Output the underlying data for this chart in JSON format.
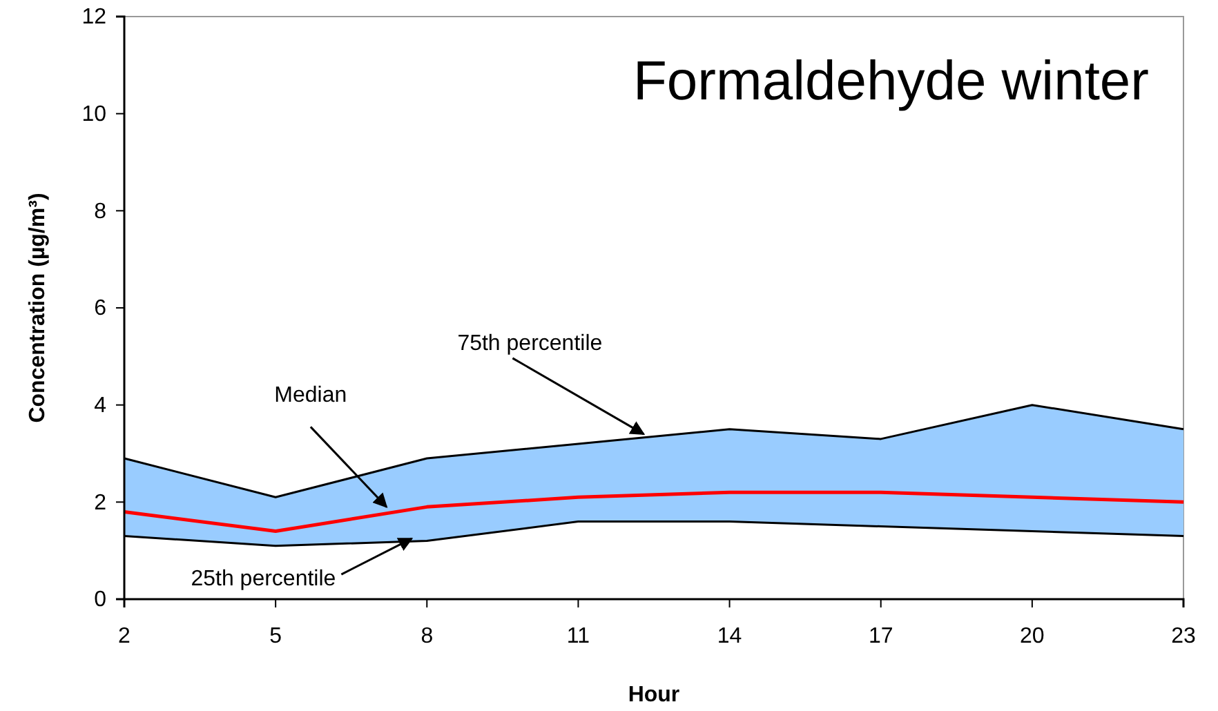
{
  "chart_data": {
    "type": "line",
    "title": "Formaldehyde winter",
    "xlabel": "Hour",
    "ylabel": "Concentration (µg/m³)",
    "x": [
      2,
      5,
      8,
      11,
      14,
      17,
      20,
      23
    ],
    "series": [
      {
        "color": "#ff0000",
        "values": [
          1.8,
          1.4,
          1.9,
          2.1,
          2.2,
          2.2,
          2.1,
          2.0
        ],
        "lower": [
          1.3,
          1.1,
          1.2,
          1.6,
          1.6,
          1.5,
          1.4,
          1.3
        ],
        "upper": [
          2.9,
          2.1,
          2.9,
          3.2,
          3.5,
          3.3,
          4.0,
          3.5
        ]
      },
      {
        "color": "#000000",
        "values": [
          2.9,
          2.1,
          2.9,
          3.2,
          3.5,
          3.3,
          4.0,
          3.5
        ]
      },
      {
        "color": "#000000",
        "values": [
          1.3,
          1.1,
          1.2,
          1.6,
          1.6,
          1.5,
          1.4,
          1.3
        ]
      }
    ],
    "xlim": [
      2,
      23
    ],
    "xticks": [
      2,
      5,
      8,
      11,
      14,
      17,
      20,
      23
    ],
    "ylim": [
      0,
      12
    ],
    "yticks": [
      0,
      2,
      4,
      6,
      8,
      10,
      12
    ],
    "grid": false,
    "marker": "none",
    "line_style": "solid",
    "annotations": [
      {
        "text": "75th percentile",
        "x": 12.3,
        "y": 3.4
      },
      {
        "text": "Median",
        "x": 7.2,
        "y": 1.9
      },
      {
        "text": "25th percentile",
        "x": 7.7,
        "y": 1.25
      }
    ]
  }
}
